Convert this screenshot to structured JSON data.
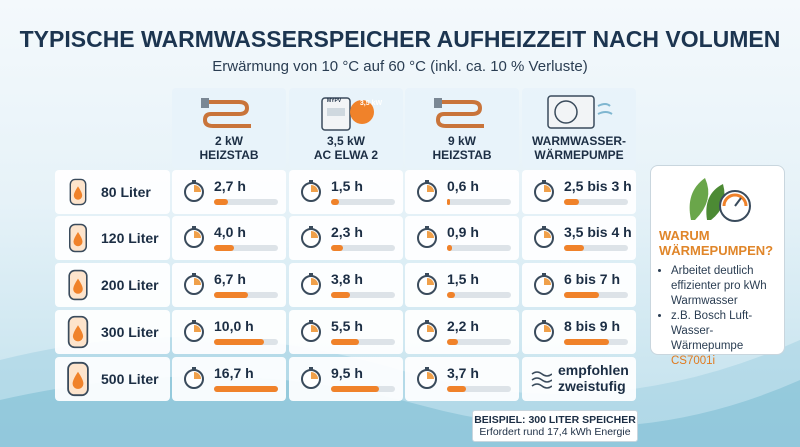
{
  "header": {
    "title": "TYPISCHE WARMWASSERSPEICHER AUFHEIZZEIT NACH VOLUMEN",
    "subtitle": "Erwärmung von 10 °C auf 60 °C (inkl. ca. 10 % Verluste)"
  },
  "columns": [
    {
      "lines": [
        "2 kW",
        "HEIZSTAB"
      ]
    },
    {
      "lines": [
        "3,5 kW",
        "AC ELWA 2"
      ],
      "badge": "3,5 kW",
      "device": "MYPV"
    },
    {
      "lines": [
        "9 kW",
        "HEIZSTAB"
      ]
    },
    {
      "lines": [
        "WARMWASSER-",
        "WÄRMEPUMPE"
      ]
    }
  ],
  "rows": [
    {
      "label": "80 Liter",
      "cells": [
        {
          "text": "2,7 h",
          "hours": 2.7
        },
        {
          "text": "1,5 h",
          "hours": 1.5
        },
        {
          "text": "0,6 h",
          "hours": 0.6
        },
        {
          "text": "2,5 bis 3 h",
          "hours": [
            2.5,
            3
          ]
        }
      ]
    },
    {
      "label": "120 Liter",
      "cells": [
        {
          "text": "4,0 h",
          "hours": 4.0
        },
        {
          "text": "2,3 h",
          "hours": 2.3
        },
        {
          "text": "0,9 h",
          "hours": 0.9
        },
        {
          "text": "3,5 bis 4 h",
          "hours": [
            3.5,
            4
          ]
        }
      ]
    },
    {
      "label": "200 Liter",
      "cells": [
        {
          "text": "6,7 h",
          "hours": 6.7
        },
        {
          "text": "3,8 h",
          "hours": 3.8
        },
        {
          "text": "1,5 h",
          "hours": 1.5
        },
        {
          "text": "6 bis 7 h",
          "hours": [
            6,
            7
          ]
        }
      ]
    },
    {
      "label": "300 Liter",
      "cells": [
        {
          "text": "10,0 h",
          "hours": 10.0
        },
        {
          "text": "5,5 h",
          "hours": 5.5
        },
        {
          "text": "2,2 h",
          "hours": 2.2
        },
        {
          "text": "8 bis 9 h",
          "hours": [
            8,
            9
          ]
        }
      ]
    },
    {
      "label": "500 Liter",
      "cells": [
        {
          "text": "16,7 h",
          "hours": 16.7
        },
        {
          "text": "9,5 h",
          "hours": 9.5
        },
        {
          "text": "3,7 h",
          "hours": 3.7
        },
        {
          "lines": [
            "empfohlen",
            "zweistufig"
          ]
        }
      ]
    }
  ],
  "sidebar": {
    "title": [
      "WARUM",
      "WÄRMEPUMPEN?"
    ],
    "bullets": [
      {
        "text": "Arbeitet deutlich effizienter pro kWh Warmwasser"
      },
      {
        "text": "z.B. Bosch Luft-Wasser-Wärmepumpe",
        "highlight": "CS7001i"
      }
    ]
  },
  "footnote": {
    "title": "BEISPIEL: 300 LITER SPEICHER",
    "text": "Erfordert rund 17,4 kWh Energie"
  }
}
